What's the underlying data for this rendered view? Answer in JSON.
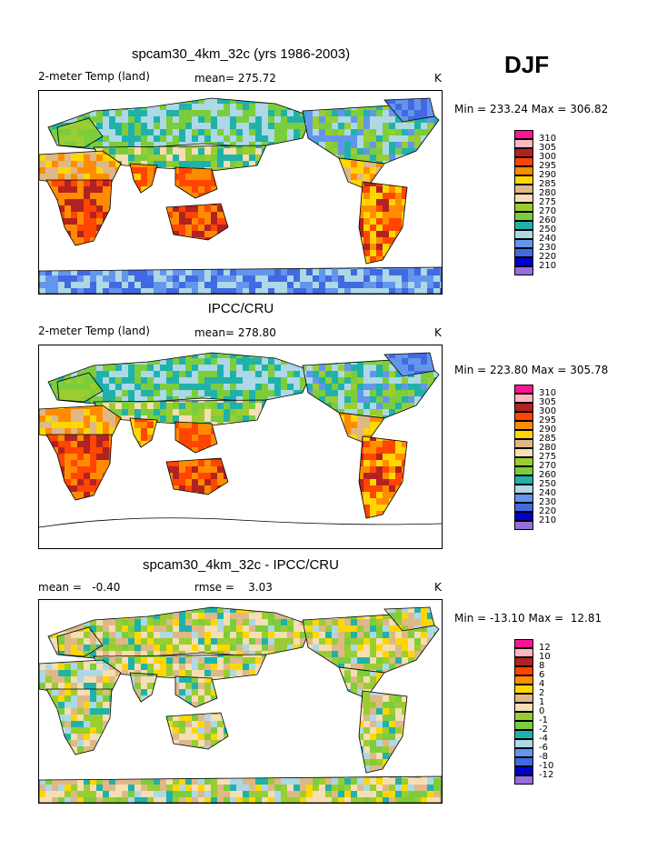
{
  "season": "DJF",
  "panels": [
    {
      "id": "model",
      "title": "spcam30_4km_32c (yrs 1986-2003)",
      "left_label": "2-meter Temp (land)",
      "center_label": "mean= 275.72",
      "units": "K",
      "minmax": "Min = 233.24 Max = 306.82",
      "legend_labels": [
        "310",
        "305",
        "300",
        "295",
        "290",
        "285",
        "280",
        "275",
        "270",
        "260",
        "250",
        "240",
        "230",
        "220",
        "210"
      ],
      "colors": [
        "#ff1493",
        "#ffb6c1",
        "#b22222",
        "#ff4500",
        "#ff8c00",
        "#ffd700",
        "#deb887",
        "#f5deb3",
        "#9acd32",
        "#7ccd3c",
        "#20b2aa",
        "#add8e6",
        "#6495ed",
        "#4169e1",
        "#0000cd",
        "#9370db"
      ]
    },
    {
      "id": "obs",
      "title": "IPCC/CRU",
      "left_label": "2-meter Temp (land)",
      "center_label": "mean= 278.80",
      "units": "K",
      "minmax": "Min = 223.80 Max = 305.78",
      "legend_labels": [
        "310",
        "305",
        "300",
        "295",
        "290",
        "285",
        "280",
        "275",
        "270",
        "260",
        "250",
        "240",
        "230",
        "220",
        "210"
      ],
      "colors": [
        "#ff1493",
        "#ffb6c1",
        "#b22222",
        "#ff4500",
        "#ff8c00",
        "#ffd700",
        "#deb887",
        "#f5deb3",
        "#9acd32",
        "#7ccd3c",
        "#20b2aa",
        "#add8e6",
        "#6495ed",
        "#4169e1",
        "#0000cd",
        "#9370db"
      ]
    },
    {
      "id": "diff",
      "title": "spcam30_4km_32c - IPCC/CRU",
      "left_label": "mean =   -0.40",
      "center_label": "rmse =    3.03",
      "units": "K",
      "minmax": "Min = -13.10 Max =  12.81",
      "legend_labels": [
        "12",
        "10",
        "8",
        "6",
        "4",
        "2",
        "1",
        "0",
        "-1",
        "-2",
        "-4",
        "-6",
        "-8",
        "-10",
        "-12"
      ],
      "colors": [
        "#ff1493",
        "#ffb6c1",
        "#b22222",
        "#ff4500",
        "#ff8c00",
        "#ffd700",
        "#deb887",
        "#f5deb3",
        "#9acd32",
        "#7ccd3c",
        "#20b2aa",
        "#add8e6",
        "#6495ed",
        "#4169e1",
        "#0000cd",
        "#9370db"
      ]
    }
  ]
}
